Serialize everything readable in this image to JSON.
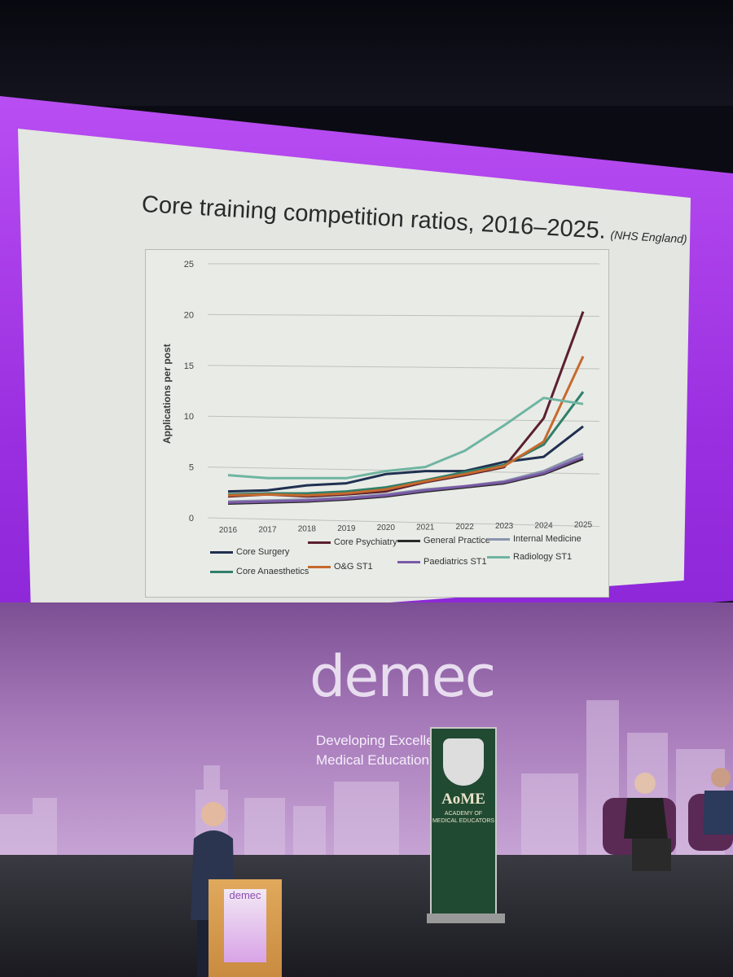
{
  "slide": {
    "title": "Core training competition ratios, 2016–2025.",
    "source": "(NHS England)"
  },
  "chart_data": {
    "type": "line",
    "title": "Core training competition ratios, 2016–2025.",
    "ylabel": "Applications per post",
    "xlabel": "",
    "ylim": [
      0,
      25
    ],
    "yticks": [
      0,
      5,
      10,
      15,
      20,
      25
    ],
    "grid": true,
    "legend_position": "bottom",
    "x": [
      "2016",
      "2017",
      "2018",
      "2019",
      "2020",
      "2021",
      "2022",
      "2023",
      "2024",
      "2025"
    ],
    "series": [
      {
        "name": "Core Surgery",
        "color": "#1f3050",
        "values": [
          2.6,
          2.7,
          3.2,
          3.4,
          4.3,
          4.6,
          4.6,
          5.5,
          6.0,
          9.0
        ]
      },
      {
        "name": "Core Psychiatry",
        "color": "#5a2030",
        "values": [
          2.1,
          2.3,
          2.1,
          2.3,
          2.6,
          3.5,
          4.2,
          5.0,
          9.8,
          20.3
        ]
      },
      {
        "name": "General Practice",
        "color": "#2a2a2a",
        "values": [
          1.4,
          1.5,
          1.6,
          1.8,
          2.1,
          2.6,
          3.0,
          3.4,
          4.3,
          5.8
        ]
      },
      {
        "name": "Internal Medicine",
        "color": "#8a94ac",
        "values": [
          1.6,
          1.7,
          1.8,
          2.0,
          2.3,
          2.8,
          3.1,
          3.6,
          4.6,
          6.3
        ]
      },
      {
        "name": "Core Anaesthetics",
        "color": "#2f7f6a",
        "values": [
          2.3,
          2.4,
          2.4,
          2.6,
          3.0,
          3.7,
          4.5,
          5.2,
          7.2,
          12.4
        ]
      },
      {
        "name": "O&G ST1",
        "color": "#c66a2e",
        "values": [
          2.2,
          2.3,
          2.2,
          2.4,
          2.8,
          3.6,
          4.3,
          5.1,
          7.5,
          15.9
        ]
      },
      {
        "name": "Paediatrics ST1",
        "color": "#7a5aa6",
        "values": [
          1.5,
          1.6,
          1.7,
          1.9,
          2.2,
          2.7,
          3.1,
          3.5,
          4.4,
          6.0
        ]
      },
      {
        "name": "Radiology ST1",
        "color": "#6fb5a2",
        "values": [
          4.2,
          3.9,
          3.9,
          3.9,
          4.6,
          5.0,
          6.6,
          9.1,
          11.8,
          11.2
        ]
      }
    ]
  },
  "backdrop": {
    "logo": "demec",
    "tagline_line1": "Developing Excellence in",
    "tagline_line2": "Medical Education C"
  },
  "banner": {
    "aome": "AoME",
    "academy_line1": "ACADEMY OF",
    "academy_line2": "MEDICAL EDUCATORS"
  },
  "podium": {
    "logo": "demec"
  }
}
